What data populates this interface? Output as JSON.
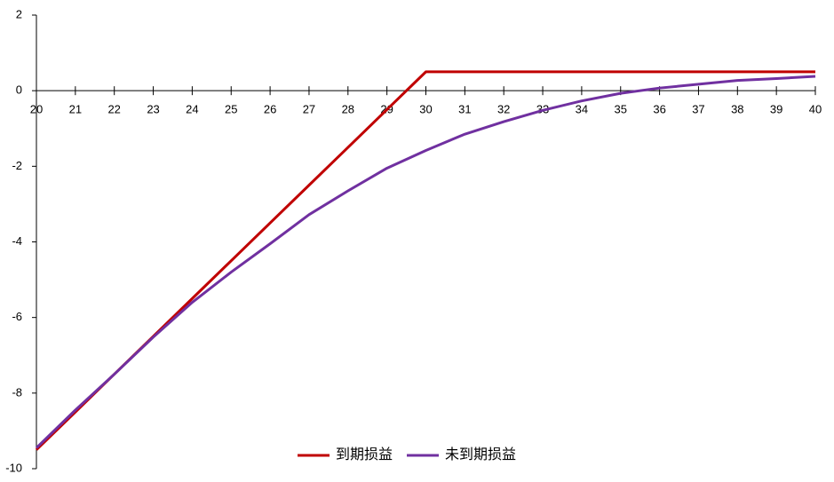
{
  "chart_data": {
    "type": "line",
    "x": [
      20,
      21,
      22,
      23,
      24,
      25,
      26,
      27,
      28,
      29,
      30,
      31,
      32,
      33,
      34,
      35,
      36,
      37,
      38,
      39,
      40
    ],
    "series": [
      {
        "name": "到期损益",
        "color": "#c00000",
        "values": [
          -9.5,
          -8.5,
          -7.5,
          -6.5,
          -5.5,
          -4.5,
          -3.5,
          -2.5,
          -1.5,
          -0.5,
          0.5,
          0.5,
          0.5,
          0.5,
          0.5,
          0.5,
          0.5,
          0.5,
          0.5,
          0.5,
          0.5
        ]
      },
      {
        "name": "未到期损益",
        "color": "#7030a0",
        "values": [
          -9.45,
          -8.45,
          -7.5,
          -6.52,
          -5.6,
          -4.8,
          -4.05,
          -3.28,
          -2.65,
          -2.05,
          -1.58,
          -1.15,
          -0.82,
          -0.52,
          -0.27,
          -0.07,
          0.07,
          0.17,
          0.27,
          0.32,
          0.38
        ]
      }
    ],
    "xlim": [
      20,
      40
    ],
    "xticks": [
      20,
      21,
      22,
      23,
      24,
      25,
      26,
      27,
      28,
      29,
      30,
      31,
      32,
      33,
      34,
      35,
      36,
      37,
      38,
      39,
      40
    ],
    "ylim": [
      -10,
      2
    ],
    "yticks": [
      -10,
      -8,
      -6,
      -4,
      -2,
      0,
      2
    ],
    "legend": "bottom"
  }
}
